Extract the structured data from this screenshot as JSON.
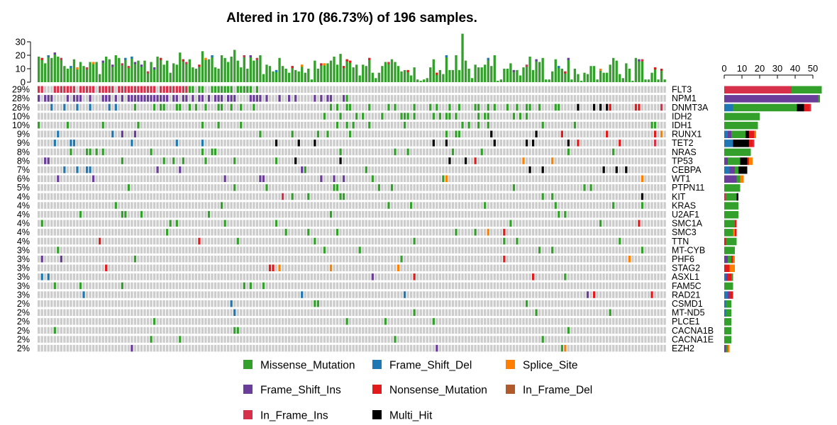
{
  "chart_data": {
    "type": "oncoplot",
    "title": "Altered in 170 (86.73%) of 196 samples.",
    "n_samples": 196,
    "top_axis_ticks": [
      "0",
      "10",
      "20",
      "30"
    ],
    "side_axis_ticks": [
      "0",
      "10",
      "20",
      "30",
      "40",
      "50"
    ],
    "colors": {
      "Missense_Mutation": "#33a02c",
      "Frame_Shift_Del": "#1f78b4",
      "Splice_Site": "#ff7f00",
      "Frame_Shift_Ins": "#6a3d9a",
      "Nonsense_Mutation": "#e31a1c",
      "In_Frame_Del": "#b15928",
      "In_Frame_Ins": "#d6304a",
      "Multi_Hit": "#000000",
      "none": "#cccccc"
    },
    "legend": [
      "Missense_Mutation",
      "Frame_Shift_Del",
      "Splice_Site",
      "Frame_Shift_Ins",
      "Nonsense_Mutation",
      "In_Frame_Del",
      "In_Frame_Ins",
      "Multi_Hit"
    ],
    "genes": [
      {
        "name": "FLT3",
        "pct": "29%",
        "side": [
          [
            "In_Frame_Ins",
            38
          ],
          [
            "Missense_Mutation",
            17
          ]
        ]
      },
      {
        "name": "NPM1",
        "pct": "28%",
        "side": [
          [
            "Frame_Shift_Ins",
            53
          ],
          [
            "Missense_Mutation",
            1
          ]
        ]
      },
      {
        "name": "DNMT3A",
        "pct": "26%",
        "side": [
          [
            "Frame_Shift_Del",
            5
          ],
          [
            "Missense_Mutation",
            36
          ],
          [
            "Multi_Hit",
            4
          ],
          [
            "Nonsense_Mutation",
            3
          ],
          [
            "In_Frame_Ins",
            1
          ]
        ]
      },
      {
        "name": "IDH2",
        "pct": "10%",
        "side": [
          [
            "Missense_Mutation",
            20
          ]
        ]
      },
      {
        "name": "IDH1",
        "pct": "10%",
        "side": [
          [
            "Missense_Mutation",
            19
          ]
        ]
      },
      {
        "name": "RUNX1",
        "pct": "9%",
        "side": [
          [
            "Frame_Shift_Del",
            2
          ],
          [
            "Frame_Shift_Ins",
            2
          ],
          [
            "Missense_Mutation",
            8
          ],
          [
            "Multi_Hit",
            2
          ],
          [
            "Nonsense_Mutation",
            3
          ],
          [
            "Splice_Site",
            1
          ]
        ]
      },
      {
        "name": "TET2",
        "pct": "9%",
        "side": [
          [
            "Frame_Shift_Del",
            5
          ],
          [
            "Multi_Hit",
            9
          ],
          [
            "Nonsense_Mutation",
            2
          ],
          [
            "In_Frame_Ins",
            1
          ]
        ]
      },
      {
        "name": "NRAS",
        "pct": "8%",
        "side": [
          [
            "Missense_Mutation",
            15
          ]
        ]
      },
      {
        "name": "TP53",
        "pct": "8%",
        "side": [
          [
            "Frame_Shift_Ins",
            2
          ],
          [
            "Missense_Mutation",
            7
          ],
          [
            "Multi_Hit",
            4
          ],
          [
            "Nonsense_Mutation",
            1
          ],
          [
            "Splice_Site",
            2
          ]
        ]
      },
      {
        "name": "CEBPA",
        "pct": "7%",
        "side": [
          [
            "Frame_Shift_Del",
            3
          ],
          [
            "Frame_Shift_Ins",
            3
          ],
          [
            "Missense_Mutation",
            2
          ],
          [
            "Multi_Hit",
            5
          ]
        ]
      },
      {
        "name": "WT1",
        "pct": "6%",
        "side": [
          [
            "Frame_Shift_Ins",
            7
          ],
          [
            "Missense_Mutation",
            2
          ],
          [
            "Splice_Site",
            2
          ]
        ]
      },
      {
        "name": "PTPN11",
        "pct": "5%",
        "side": [
          [
            "Missense_Mutation",
            9
          ]
        ]
      },
      {
        "name": "KIT",
        "pct": "4%",
        "side": [
          [
            "In_Frame_Ins",
            1
          ],
          [
            "Missense_Mutation",
            6
          ],
          [
            "Multi_Hit",
            1
          ]
        ]
      },
      {
        "name": "KRAS",
        "pct": "4%",
        "side": [
          [
            "Missense_Mutation",
            8
          ]
        ]
      },
      {
        "name": "U2AF1",
        "pct": "4%",
        "side": [
          [
            "Missense_Mutation",
            8
          ]
        ]
      },
      {
        "name": "SMC1A",
        "pct": "4%",
        "side": [
          [
            "Missense_Mutation",
            6
          ],
          [
            "Nonsense_Mutation",
            1
          ]
        ]
      },
      {
        "name": "SMC3",
        "pct": "4%",
        "side": [
          [
            "Missense_Mutation",
            5
          ],
          [
            "Splice_Site",
            1
          ],
          [
            "Nonsense_Mutation",
            1
          ]
        ]
      },
      {
        "name": "TTN",
        "pct": "4%",
        "side": [
          [
            "Nonsense_Mutation",
            1
          ],
          [
            "Missense_Mutation",
            6
          ]
        ]
      },
      {
        "name": "MT-CYB",
        "pct": "3%",
        "side": [
          [
            "Missense_Mutation",
            6
          ]
        ]
      },
      {
        "name": "PHF6",
        "pct": "3%",
        "side": [
          [
            "Frame_Shift_Ins",
            2
          ],
          [
            "Missense_Mutation",
            2
          ],
          [
            "Nonsense_Mutation",
            1
          ],
          [
            "Splice_Site",
            1
          ]
        ]
      },
      {
        "name": "STAG2",
        "pct": "3%",
        "side": [
          [
            "Nonsense_Mutation",
            3
          ],
          [
            "Splice_Site",
            3
          ]
        ]
      },
      {
        "name": "ASXL1",
        "pct": "3%",
        "side": [
          [
            "Frame_Shift_Del",
            1
          ],
          [
            "Frame_Shift_Ins",
            1
          ],
          [
            "Nonsense_Mutation",
            2
          ],
          [
            "Missense_Mutation",
            1
          ]
        ]
      },
      {
        "name": "FAM5C",
        "pct": "3%",
        "side": [
          [
            "Missense_Mutation",
            5
          ]
        ]
      },
      {
        "name": "RAD21",
        "pct": "3%",
        "side": [
          [
            "Frame_Shift_Del",
            2
          ],
          [
            "Frame_Shift_Ins",
            1
          ],
          [
            "Nonsense_Mutation",
            2
          ]
        ]
      },
      {
        "name": "CSMD1",
        "pct": "2%",
        "side": [
          [
            "Frame_Shift_Del",
            1
          ],
          [
            "Missense_Mutation",
            3
          ]
        ]
      },
      {
        "name": "MT-ND5",
        "pct": "2%",
        "side": [
          [
            "Frame_Shift_Del",
            1
          ],
          [
            "Missense_Mutation",
            3
          ]
        ]
      },
      {
        "name": "PLCE1",
        "pct": "2%",
        "side": [
          [
            "Missense_Mutation",
            4
          ]
        ]
      },
      {
        "name": "CACNA1B",
        "pct": "2%",
        "side": [
          [
            "Missense_Mutation",
            4
          ]
        ]
      },
      {
        "name": "CACNA1E",
        "pct": "2%",
        "side": [
          [
            "Missense_Mutation",
            4
          ]
        ]
      },
      {
        "name": "EZH2",
        "pct": "2%",
        "side": [
          [
            "Frame_Shift_Ins",
            1
          ],
          [
            "Missense_Mutation",
            1
          ],
          [
            "Splice_Site",
            1
          ]
        ]
      }
    ]
  }
}
